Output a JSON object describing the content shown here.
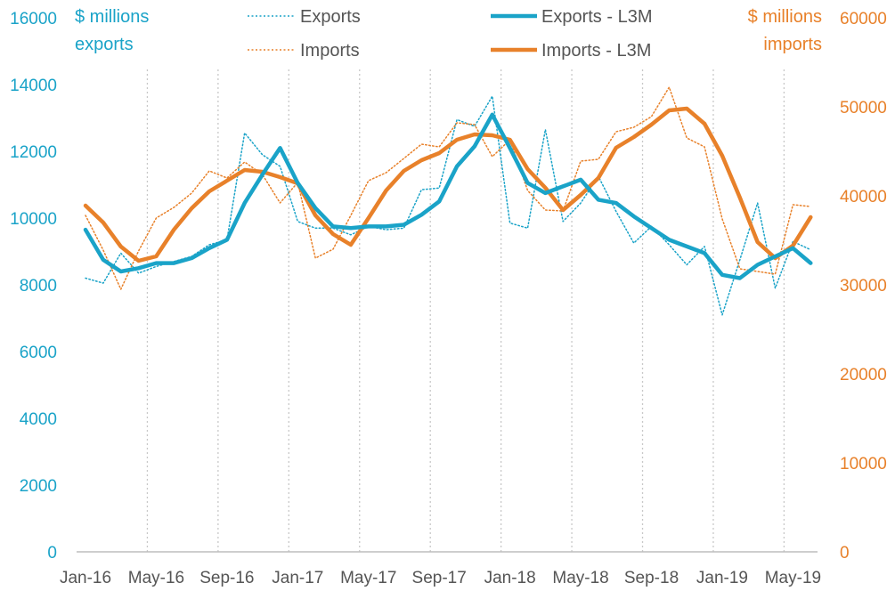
{
  "colors": {
    "exports": "#1AA3C8",
    "imports": "#E8812A",
    "axis_tick_text": "#555555",
    "vgrid": "#c8c8c8"
  },
  "chart_data": {
    "type": "line",
    "x_tick_labels": [
      "Jan-16",
      "May-16",
      "Sep-16",
      "Jan-17",
      "May-17",
      "Sep-17",
      "Jan-18",
      "May-18",
      "Sep-18",
      "Jan-19",
      "May-19"
    ],
    "y_left": {
      "title_line1": "$ millions",
      "title_line2": "exports",
      "ylim": [
        0,
        16000
      ],
      "ticks": [
        "0",
        "2000",
        "4000",
        "6000",
        "8000",
        "10000",
        "12000",
        "14000",
        "16000"
      ]
    },
    "y_right": {
      "title_line1": "$ millions",
      "title_line2": "imports",
      "ylim": [
        0,
        60000
      ],
      "ticks": [
        "0",
        "10000",
        "20000",
        "30000",
        "40000",
        "50000",
        "60000"
      ]
    },
    "months": [
      "Jan-16",
      "Feb-16",
      "Mar-16",
      "Apr-16",
      "May-16",
      "Jun-16",
      "Jul-16",
      "Aug-16",
      "Sep-16",
      "Oct-16",
      "Nov-16",
      "Dec-16",
      "Jan-17",
      "Feb-17",
      "Mar-17",
      "Apr-17",
      "May-17",
      "Jun-17",
      "Jul-17",
      "Aug-17",
      "Sep-17",
      "Oct-17",
      "Nov-17",
      "Dec-17",
      "Jan-18",
      "Feb-18",
      "Mar-18",
      "Apr-18",
      "May-18",
      "Jun-18",
      "Jul-18",
      "Aug-18",
      "Sep-18",
      "Oct-18",
      "Nov-18",
      "Dec-18",
      "Jan-19",
      "Feb-19",
      "Mar-19",
      "Apr-19",
      "May-19",
      "Jun-19"
    ],
    "legend": [
      "Exports",
      "Imports",
      "Exports - L3M",
      "Imports - L3M"
    ],
    "series": [
      {
        "name": "Exports",
        "axis": "left",
        "style": "dotted",
        "values": [
          8200,
          8050,
          8950,
          8350,
          8550,
          8700,
          8850,
          9200,
          9350,
          12550,
          11900,
          11550,
          9900,
          9700,
          9700,
          9500,
          9750,
          9650,
          9700,
          10850,
          10900,
          12950,
          12750,
          13650,
          9850,
          9700,
          12650,
          9900,
          10450,
          11250,
          10200,
          9250,
          9750,
          9200,
          8600,
          9150,
          7100,
          8750,
          10450,
          7900,
          9300,
          9050
        ]
      },
      {
        "name": "Imports",
        "axis": "right",
        "style": "dotted",
        "values": [
          37800,
          33900,
          29500,
          33800,
          37500,
          38700,
          40300,
          42800,
          42000,
          43800,
          42400,
          39200,
          41500,
          33000,
          34000,
          37800,
          41700,
          42600,
          44200,
          45800,
          45500,
          48200,
          48000,
          44400,
          46300,
          40600,
          38400,
          38300,
          43900,
          44100,
          47200,
          47700,
          48900,
          52200,
          46500,
          45500,
          37400,
          31800,
          31500,
          31200,
          39000,
          38800
        ]
      },
      {
        "name": "Exports - L3M",
        "axis": "left",
        "style": "solid",
        "values": [
          9650,
          8750,
          8400,
          8500,
          8650,
          8650,
          8800,
          9100,
          9350,
          10450,
          11300,
          12100,
          11050,
          10300,
          9750,
          9700,
          9750,
          9750,
          9800,
          10100,
          10500,
          11550,
          12150,
          13100,
          12100,
          11050,
          10750,
          10950,
          11150,
          10550,
          10450,
          10050,
          9700,
          9350,
          9150,
          8950,
          8300,
          8200,
          8600,
          8850,
          9100,
          8650
        ]
      },
      {
        "name": "Imports - L3M",
        "axis": "right",
        "style": "solid",
        "values": [
          38900,
          37000,
          34300,
          32700,
          33200,
          36200,
          38600,
          40500,
          41700,
          42900,
          42700,
          42100,
          41400,
          37800,
          35700,
          34500,
          37500,
          40600,
          42800,
          44000,
          44800,
          46300,
          46900,
          46800,
          46300,
          43000,
          40900,
          38400,
          40100,
          42000,
          45400,
          46600,
          48000,
          49600,
          49800,
          48100,
          44500,
          39800,
          34800,
          33000,
          34400,
          37600
        ]
      }
    ]
  }
}
